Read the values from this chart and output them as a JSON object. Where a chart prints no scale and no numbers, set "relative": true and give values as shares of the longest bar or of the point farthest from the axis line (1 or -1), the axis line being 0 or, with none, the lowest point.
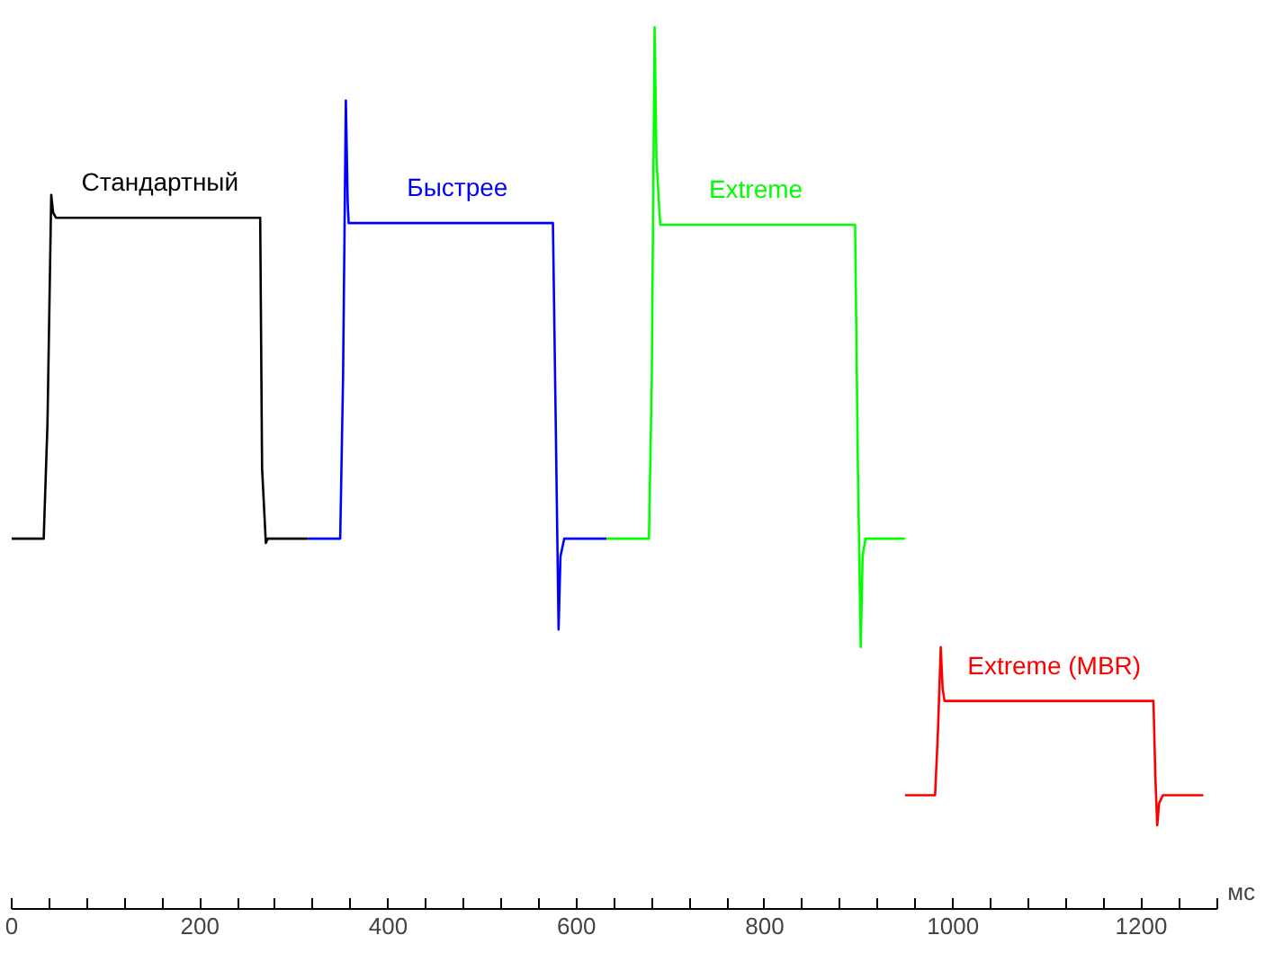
{
  "chart_data": {
    "type": "line",
    "relative": true,
    "xlabel": "мс",
    "xlim": [
      0,
      1280
    ],
    "xticks": [
      0,
      {
        "value": 40,
        "label": null
      },
      {
        "value": 80,
        "label": null
      },
      {
        "value": 120,
        "label": null
      },
      {
        "value": 160,
        "label": null
      },
      200,
      {
        "value": 240,
        "label": null
      },
      {
        "value": 280,
        "label": null
      },
      {
        "value": 320,
        "label": null
      },
      {
        "value": 360,
        "label": null
      },
      400,
      {
        "value": 440,
        "label": null
      },
      {
        "value": 480,
        "label": null
      },
      {
        "value": 520,
        "label": null
      },
      {
        "value": 560,
        "label": null
      },
      600,
      {
        "value": 640,
        "label": null
      },
      {
        "value": 680,
        "label": null
      },
      {
        "value": 720,
        "label": null
      },
      {
        "value": 760,
        "label": null
      },
      800,
      {
        "value": 840,
        "label": null
      },
      {
        "value": 880,
        "label": null
      },
      {
        "value": 920,
        "label": null
      },
      {
        "value": 960,
        "label": null
      },
      1000,
      {
        "value": 1040,
        "label": null
      },
      {
        "value": 1080,
        "label": null
      },
      {
        "value": 1120,
        "label": null
      },
      {
        "value": 1160,
        "label": null
      },
      1200,
      {
        "value": 1240,
        "label": null
      },
      {
        "value": 1280,
        "label": null
      }
    ],
    "grid": false,
    "marker": "none",
    "line_style": "solid",
    "series": [
      {
        "name": "Стандартный",
        "color": "#000000",
        "x": [
          0,
          34,
          38,
          42,
          44,
          47,
          264,
          266,
          270,
          272,
          315
        ],
        "values": [
          0.42,
          0.42,
          0.55,
          0.81,
          0.79,
          0.784,
          0.784,
          0.5,
          0.415,
          0.42,
          0.42
        ]
      },
      {
        "name": "Быстрее",
        "color": "#0000ff",
        "x": [
          315,
          349,
          352,
          355,
          357,
          358,
          575,
          578,
          581,
          583,
          587,
          632
        ],
        "values": [
          0.42,
          0.42,
          0.6,
          0.917,
          0.8,
          0.778,
          0.778,
          0.55,
          0.317,
          0.4,
          0.42,
          0.42
        ]
      },
      {
        "name": "Extreme",
        "color": "#00ff00",
        "x": [
          632,
          677,
          680,
          683,
          685,
          689,
          896,
          899,
          902,
          904,
          907,
          949
        ],
        "values": [
          0.42,
          0.42,
          0.6,
          1.0,
          0.85,
          0.776,
          0.776,
          0.5,
          0.297,
          0.4,
          0.42,
          0.42
        ]
      },
      {
        "name": "Extreme (MBR)",
        "color": "#ff0000",
        "x": [
          949,
          981,
          984,
          987,
          989,
          991,
          1213,
          1215,
          1217,
          1219,
          1223,
          1266
        ],
        "values": [
          0.129,
          0.129,
          0.2,
          0.297,
          0.25,
          0.236,
          0.236,
          0.15,
          0.095,
          0.12,
          0.129,
          0.129
        ]
      }
    ]
  }
}
